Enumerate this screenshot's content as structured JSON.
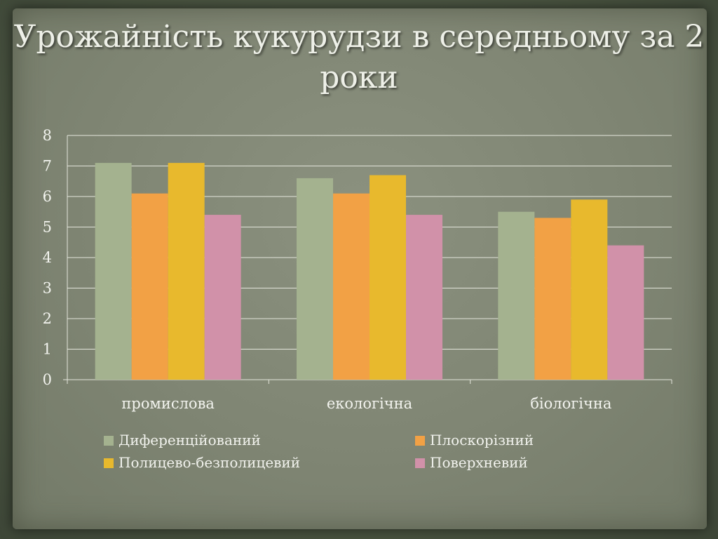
{
  "title": "Урожайність кукурудзи в середньому за 2 роки",
  "chart_data": {
    "type": "bar",
    "title": "",
    "xlabel": "",
    "ylabel": "",
    "categories": [
      "промислова",
      "екологічна",
      "біологічна"
    ],
    "series": [
      {
        "name": "Диференційований",
        "color": "#a4b28f",
        "values": [
          7.1,
          6.6,
          5.5
        ]
      },
      {
        "name": "Плоскорізний",
        "color": "#f2a145",
        "values": [
          6.1,
          6.1,
          5.3
        ]
      },
      {
        "name": "Полицево-безполицевий",
        "color": "#e8b92d",
        "values": [
          7.1,
          6.7,
          5.9
        ]
      },
      {
        "name": "Поверхневий",
        "color": "#d191a9",
        "values": [
          5.4,
          5.4,
          4.4
        ]
      }
    ],
    "ylim": [
      0,
      8
    ],
    "yticks": [
      0,
      1,
      2,
      3,
      4,
      5,
      6,
      7,
      8
    ],
    "grid": true,
    "legend": "bottom"
  }
}
